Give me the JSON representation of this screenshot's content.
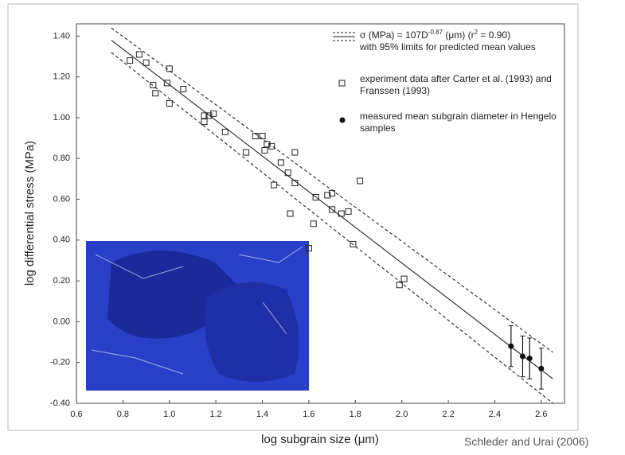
{
  "chart_data": {
    "type": "scatter",
    "xlabel": "log subgrain size (μm)",
    "ylabel": "log differential stress (MPa)",
    "xlim": [
      0.6,
      2.7
    ],
    "ylim": [
      -0.4,
      1.46
    ],
    "xticks": [
      0.6,
      0.8,
      {
        "value": 1,
        "label": "1.0"
      },
      1.2,
      1.4,
      1.6,
      1.8,
      {
        "value": 2,
        "label": "2.0"
      },
      2.2,
      2.4,
      2.6
    ],
    "yticks": [
      {
        "value": 1.4,
        "label": "1.40"
      },
      {
        "value": 1.2,
        "label": "1.20"
      },
      {
        "value": 1,
        "label": "1.00"
      },
      {
        "value": 0.8,
        "label": "0.80"
      },
      {
        "value": 0.6,
        "label": "0.60"
      },
      {
        "value": 0.4,
        "label": "0.40"
      },
      {
        "value": 0.2,
        "label": "0.20"
      },
      {
        "value": 0,
        "label": "0.00"
      },
      {
        "value": -0.2,
        "label": "-0.20"
      },
      {
        "value": -0.4,
        "label": "-0.40"
      }
    ],
    "fit_label": [
      "σ (MPa) = 107D",
      "-0.87",
      " (μm) (r",
      "2",
      " = 0.90)"
    ],
    "fit_sublabel": "with 95% limits for predicted mean values",
    "lines": [
      {
        "style": "solid",
        "color": "#222",
        "x": [
          0.75,
          2.65
        ],
        "values": [
          1.38,
          -0.28
        ]
      },
      {
        "style": "dashed",
        "color": "#222",
        "x": [
          0.75,
          2.65
        ],
        "values": [
          1.44,
          -0.15
        ]
      },
      {
        "style": "dashed",
        "color": "#222",
        "x": [
          0.75,
          2.65
        ],
        "values": [
          1.32,
          -0.4
        ]
      }
    ],
    "series": [
      {
        "name": "experiment data after Carter et al. (1993) and Franssen (1993)",
        "marker": "open-square",
        "color": "#222",
        "x": [
          0.83,
          0.87,
          0.9,
          0.93,
          0.94,
          0.99,
          1.0,
          1.0,
          1.06,
          1.15,
          1.15,
          1.17,
          1.19,
          1.24,
          1.33,
          1.37,
          1.4,
          1.41,
          1.42,
          1.44,
          1.45,
          1.48,
          1.51,
          1.52,
          1.54,
          1.54,
          1.6,
          1.62,
          1.63,
          1.68,
          1.7,
          1.7,
          1.74,
          1.77,
          1.79,
          1.82,
          1.99,
          2.01
        ],
        "values": [
          1.28,
          1.31,
          1.27,
          1.16,
          1.12,
          1.17,
          1.24,
          1.07,
          1.14,
          1.01,
          0.98,
          1.01,
          1.02,
          0.93,
          0.83,
          0.91,
          0.91,
          0.84,
          0.87,
          0.86,
          0.67,
          0.78,
          0.73,
          0.53,
          0.68,
          0.83,
          0.36,
          0.48,
          0.61,
          0.62,
          0.63,
          0.55,
          0.53,
          0.54,
          0.38,
          0.69,
          0.18,
          0.21
        ]
      },
      {
        "name": "measured mean subgrain diameter in Hengelo samples",
        "marker": "filled-circle",
        "color": "#111",
        "x": [
          2.47,
          2.52,
          2.55,
          2.6
        ],
        "values": [
          -0.12,
          -0.17,
          -0.18,
          -0.23
        ],
        "errors": [
          0.1,
          0.1,
          0.1,
          0.1
        ]
      }
    ]
  },
  "credit": "Schleder and Urai (2006)"
}
